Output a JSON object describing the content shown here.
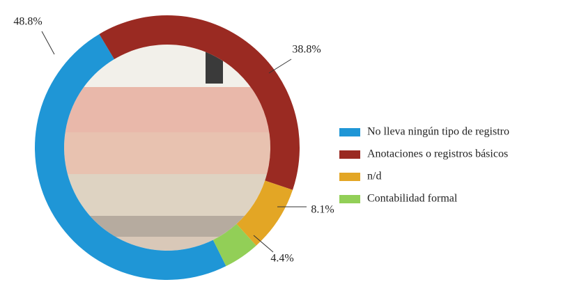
{
  "chart_data": {
    "type": "donut",
    "series": [
      {
        "name": "No lleva ningún tipo de registro",
        "color": "#1f96d6",
        "value": 48.8,
        "value_label": "48.8%"
      },
      {
        "name": "Anotaciones o registros básicos",
        "color": "#9a2a22",
        "value": 38.8,
        "value_label": "38.8%"
      },
      {
        "name": "n/d",
        "color": "#e3a625",
        "value": 8.1,
        "value_label": "8.1%"
      },
      {
        "name": "Contabilidad formal",
        "color": "#92cf57",
        "value": 4.4,
        "value_label": "4.4%"
      }
    ],
    "legend": "right"
  }
}
